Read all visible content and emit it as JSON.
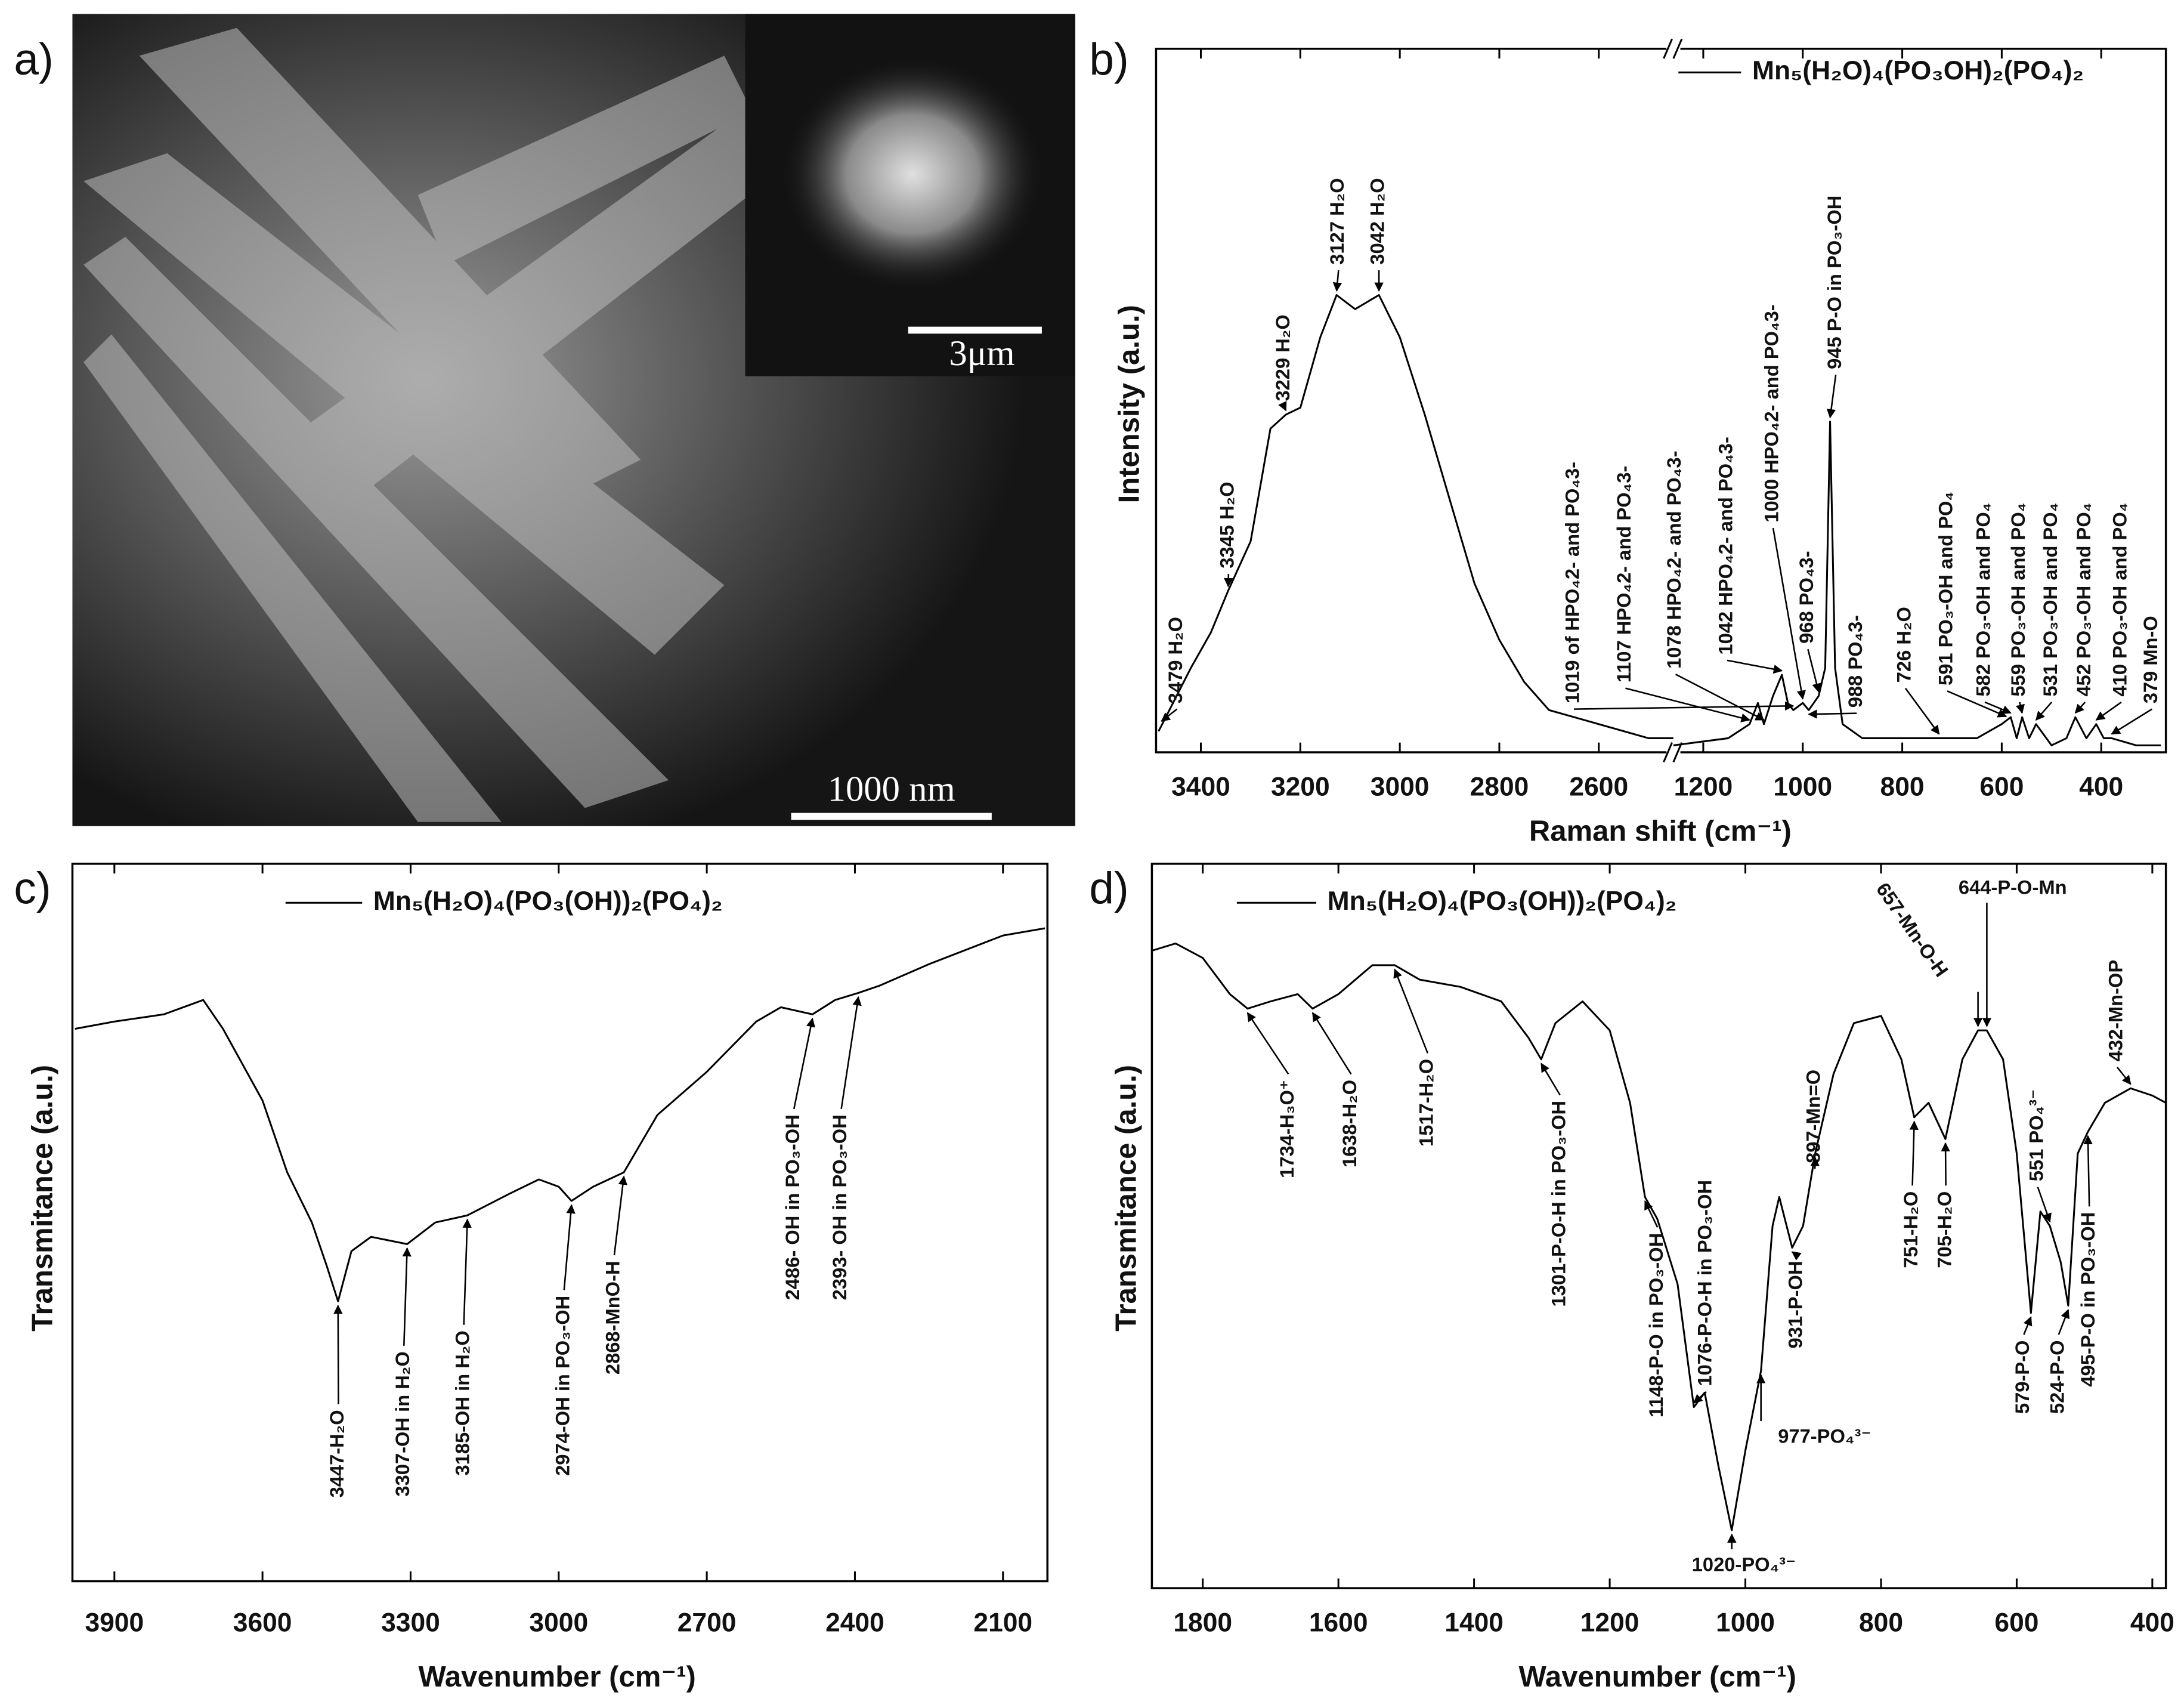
{
  "image": {
    "label": "a)",
    "inset_scale": "3μm",
    "scale": "1000 nm"
  },
  "chart_data": [
    {
      "type": "line",
      "label": "b)",
      "xlabel": "Raman shift (cm⁻¹)",
      "ylabel": "Intensity (a.u.)",
      "xlim": [
        3490,
        270
      ],
      "xbreak": [
        2450,
        1260
      ],
      "ylim": [
        0,
        100
      ],
      "xticks": [
        3400,
        3200,
        3000,
        2800,
        2600,
        1200,
        1000,
        800,
        600,
        400
      ],
      "x": [
        3485,
        3420,
        3380,
        3345,
        3300,
        3260,
        3229,
        3200,
        3160,
        3127,
        3090,
        3042,
        3000,
        2950,
        2900,
        2850,
        2800,
        2750,
        2700,
        2600,
        2500,
        2450,
        1260,
        1150,
        1107,
        1090,
        1078,
        1060,
        1042,
        1030,
        1019,
        1000,
        988,
        968,
        955,
        945,
        935,
        920,
        880,
        800,
        726,
        650,
        600,
        582,
        570,
        559,
        545,
        531,
        500,
        470,
        452,
        430,
        410,
        395,
        379,
        330,
        280
      ],
      "series": [
        {
          "name": "Mn₅(H₂O)₄(PO₃OH)₂(PO₄)₂",
          "color": "#000000",
          "values": [
            3,
            12,
            17,
            23,
            30,
            46,
            48,
            49,
            59,
            65,
            63,
            65,
            59,
            48,
            36,
            24,
            16,
            10,
            6,
            4,
            2,
            2,
            1,
            2,
            4,
            7,
            4,
            8,
            11,
            7,
            6,
            7,
            6,
            8,
            12,
            47,
            12,
            4,
            2,
            2,
            2,
            2,
            4,
            5,
            2,
            5,
            2,
            4,
            1,
            2,
            5,
            2,
            4,
            2,
            2,
            1,
            1
          ]
        }
      ],
      "annotations": [
        {
          "text": "3479 H₂O",
          "x": 3479
        },
        {
          "text": "3345 H₂O",
          "x": 3345
        },
        {
          "text": "3229 H₂O",
          "x": 3229
        },
        {
          "text": "3127 H₂O",
          "x": 3127
        },
        {
          "text": "3042 H₂O",
          "x": 3042
        },
        {
          "text": "1019 of HPO₄2- and PO₄3-",
          "x": 1019
        },
        {
          "text": "1107 HPO₄2- and PO₄3-",
          "x": 1107
        },
        {
          "text": "1078 HPO₄2- and PO₄3-",
          "x": 1078
        },
        {
          "text": "1042 HPO₄2- and PO₄3-",
          "x": 1042
        },
        {
          "text": "1000 HPO₄2- and PO₄3-",
          "x": 1000
        },
        {
          "text": "968  PO₄3-",
          "x": 968
        },
        {
          "text": "945 P-O in PO₃-OH",
          "x": 945
        },
        {
          "text": "988  PO₄3-",
          "x": 988
        },
        {
          "text": "726 H₂O",
          "x": 726
        },
        {
          "text": "591 PO₃-OH and PO₄",
          "x": 591
        },
        {
          "text": "582 PO₃-OH and PO₄",
          "x": 582
        },
        {
          "text": "559 PO₃-OH and PO₄",
          "x": 559
        },
        {
          "text": "531 PO₃-OH and PO₄",
          "x": 531
        },
        {
          "text": "452 PO₃-OH and PO₄",
          "x": 452
        },
        {
          "text": "410 PO₃-OH and PO₄",
          "x": 410
        },
        {
          "text": "379 Mn-O",
          "x": 379
        }
      ]
    },
    {
      "type": "line",
      "label": "c)",
      "xlabel": "Wavenumber (cm⁻¹)",
      "ylabel": "Transmitance (a.u.)",
      "xlim": [
        3985,
        2010
      ],
      "ylim": [
        0,
        100
      ],
      "xticks": [
        3900,
        3600,
        3300,
        3000,
        2700,
        2400,
        2100
      ],
      "x": [
        3980,
        3900,
        3800,
        3720,
        3680,
        3600,
        3550,
        3500,
        3470,
        3447,
        3420,
        3380,
        3307,
        3250,
        3185,
        3100,
        3040,
        3000,
        2974,
        2930,
        2868,
        2800,
        2700,
        2600,
        2550,
        2486,
        2440,
        2393,
        2350,
        2250,
        2100,
        2015
      ],
      "series": [
        {
          "name": "Mn₅(H₂O)₄(PO₃(OH))₂(PO₄)₂",
          "color": "#000000",
          "values": [
            77,
            78,
            79,
            81,
            77,
            67,
            57,
            50,
            44,
            39,
            46,
            48,
            47,
            50,
            51,
            54,
            56,
            55,
            53,
            55,
            57,
            65,
            71,
            78,
            80,
            79,
            81,
            82,
            83,
            86,
            90,
            91
          ]
        }
      ],
      "annotations": [
        {
          "text": "3447-H₂O",
          "x": 3447
        },
        {
          "text": "3307-OH in H₂O",
          "x": 3307
        },
        {
          "text": "3185-OH in H₂O",
          "x": 3185
        },
        {
          "text": "2974-OH in PO₃-OH",
          "x": 2974
        },
        {
          "text": "2868-MnO-H",
          "x": 2868
        },
        {
          "text": "2486- OH in PO₃-OH",
          "x": 2486
        },
        {
          "text": "2393- OH in PO₃-OH",
          "x": 2393
        }
      ]
    },
    {
      "type": "line",
      "label": "d)",
      "xlabel": "Wavenumber (cm⁻¹)",
      "ylabel": "Transmitance (a.u.)",
      "xlim": [
        1875,
        380
      ],
      "ylim": [
        0,
        100
      ],
      "xticks": [
        1800,
        1600,
        1400,
        1200,
        1000,
        800,
        600,
        400
      ],
      "x": [
        1875,
        1840,
        1800,
        1760,
        1734,
        1700,
        1660,
        1638,
        1600,
        1550,
        1517,
        1480,
        1420,
        1360,
        1320,
        1301,
        1280,
        1240,
        1200,
        1170,
        1148,
        1130,
        1100,
        1076,
        1060,
        1040,
        1020,
        1000,
        977,
        960,
        950,
        931,
        915,
        897,
        870,
        840,
        800,
        770,
        751,
        730,
        705,
        680,
        657,
        644,
        620,
        600,
        579,
        565,
        551,
        535,
        524,
        510,
        495,
        470,
        432,
        400,
        380
      ],
      "series": [
        {
          "name": "Mn₅(H₂O)₄(PO₃(OH))₂(PO₄)₂",
          "color": "#000000",
          "values": [
            88,
            89,
            87,
            82,
            80,
            81,
            82,
            80,
            82,
            86,
            86,
            84,
            83,
            81,
            76,
            73,
            78,
            81,
            77,
            67,
            54,
            51,
            42,
            25,
            27,
            17,
            8,
            19,
            30,
            50,
            54,
            47,
            50,
            60,
            71,
            78,
            79,
            73,
            65,
            67,
            62,
            73,
            77,
            77,
            73,
            60,
            38,
            52,
            50,
            45,
            39,
            60,
            63,
            67,
            69,
            68,
            67
          ]
        }
      ],
      "annotations": [
        {
          "text": "1734-H₃O⁺",
          "x": 1734
        },
        {
          "text": "1638-H₂O",
          "x": 1638
        },
        {
          "text": "1517-H₂O",
          "x": 1517
        },
        {
          "text": "1301-P-O-H in PO₃-OH",
          "x": 1301
        },
        {
          "text": "1148-P-O in PO₃-OH",
          "x": 1148
        },
        {
          "text": "1076-P-O-H in PO₃-OH",
          "x": 1076
        },
        {
          "text": "1020-PO₄³⁻",
          "x": 1020
        },
        {
          "text": "977-PO₄³⁻",
          "x": 977
        },
        {
          "text": "931-P-OH",
          "x": 931
        },
        {
          "text": "897-Mn=O",
          "x": 897
        },
        {
          "text": "751-H₂O",
          "x": 751
        },
        {
          "text": "705-H₂O",
          "x": 705
        },
        {
          "text": "657-Mn-O-H",
          "x": 657
        },
        {
          "text": "644-P-O-Mn",
          "x": 644
        },
        {
          "text": "579-P-O",
          "x": 579
        },
        {
          "text": "551 PO₄³⁻",
          "x": 551
        },
        {
          "text": "524-P-O",
          "x": 524
        },
        {
          "text": "495-P-O in PO₃-OH",
          "x": 495
        },
        {
          "text": "432-Mn-OP",
          "x": 432
        }
      ]
    }
  ]
}
